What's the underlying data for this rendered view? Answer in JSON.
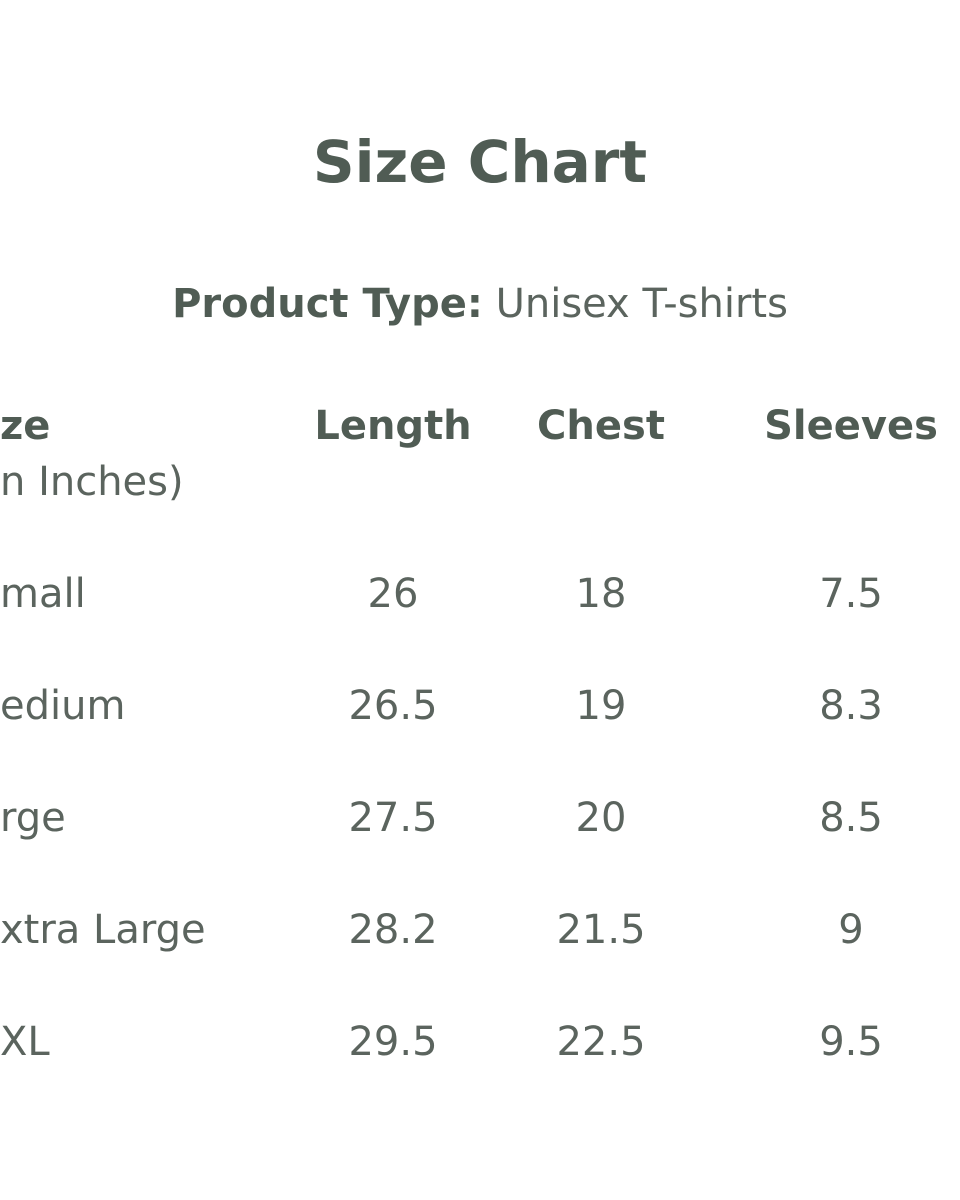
{
  "header": {
    "title": "Size Chart",
    "product_type_label": "Product Type:",
    "product_type_value": "Unisex T-shirts"
  },
  "table": {
    "columns": [
      "ze",
      "Length",
      "Chest",
      "Sleeves"
    ],
    "size_note": "n Inches)",
    "rows": [
      [
        "mall",
        "26",
        "18",
        "7.5"
      ],
      [
        "edium",
        "26.5",
        "19",
        "8.3"
      ],
      [
        "rge",
        "27.5",
        "20",
        "8.5"
      ],
      [
        "xtra Large",
        "28.2",
        "21.5",
        "9"
      ],
      [
        "XL",
        "29.5",
        "22.5",
        "9.5"
      ]
    ]
  }
}
